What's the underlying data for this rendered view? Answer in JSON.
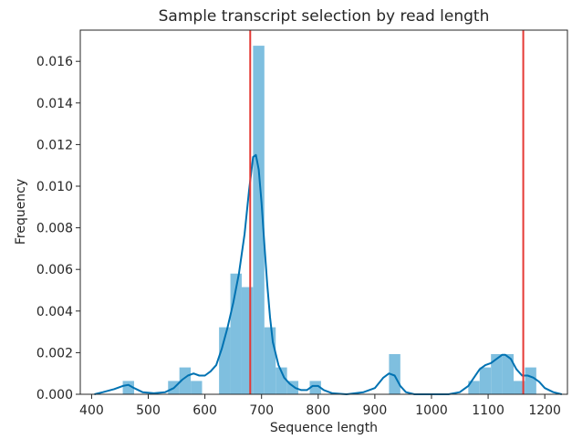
{
  "chart_data": {
    "type": "bar",
    "title": "Sample transcript selection by read length",
    "xlabel": "Sequence length",
    "ylabel": "Frequency",
    "xlim": [
      380,
      1240
    ],
    "ylim": [
      0,
      0.0175
    ],
    "xticks": [
      400,
      500,
      600,
      700,
      800,
      900,
      1000,
      1100,
      1200
    ],
    "xtick_labels": [
      "400",
      "500",
      "600",
      "700",
      "800",
      "900",
      "1000",
      "1100",
      "1200"
    ],
    "yticks": [
      0.0,
      0.002,
      0.004,
      0.006,
      0.008,
      0.01,
      0.012,
      0.014,
      0.016
    ],
    "ytick_labels": [
      "0.000",
      "0.002",
      "0.004",
      "0.006",
      "0.008",
      "0.010",
      "0.012",
      "0.014",
      "0.016"
    ],
    "grid": false,
    "histogram": {
      "bin_width": 20,
      "bars": [
        {
          "x0": 455,
          "height": 0.00064
        },
        {
          "x0": 535,
          "height": 0.00064
        },
        {
          "x0": 555,
          "height": 0.00129
        },
        {
          "x0": 575,
          "height": 0.00064
        },
        {
          "x0": 625,
          "height": 0.00322
        },
        {
          "x0": 645,
          "height": 0.0058
        },
        {
          "x0": 665,
          "height": 0.00515
        },
        {
          "x0": 685,
          "height": 0.01675
        },
        {
          "x0": 705,
          "height": 0.00322
        },
        {
          "x0": 725,
          "height": 0.00129
        },
        {
          "x0": 745,
          "height": 0.00064
        },
        {
          "x0": 785,
          "height": 0.00064
        },
        {
          "x0": 925,
          "height": 0.00193
        },
        {
          "x0": 1065,
          "height": 0.00064
        },
        {
          "x0": 1085,
          "height": 0.00129
        },
        {
          "x0": 1105,
          "height": 0.00193
        },
        {
          "x0": 1125,
          "height": 0.00193
        },
        {
          "x0": 1145,
          "height": 0.00064
        },
        {
          "x0": 1165,
          "height": 0.00129
        }
      ]
    },
    "density_curve": {
      "x": [
        405,
        420,
        440,
        455,
        465,
        475,
        490,
        510,
        530,
        545,
        560,
        570,
        580,
        590,
        600,
        610,
        620,
        630,
        640,
        650,
        660,
        670,
        678,
        685,
        690,
        695,
        700,
        705,
        710,
        715,
        720,
        730,
        740,
        750,
        760,
        770,
        780,
        790,
        800,
        810,
        825,
        850,
        880,
        900,
        915,
        925,
        935,
        945,
        955,
        970,
        1000,
        1030,
        1050,
        1065,
        1075,
        1085,
        1095,
        1105,
        1115,
        1125,
        1130,
        1140,
        1150,
        1160,
        1170,
        1180,
        1190,
        1200,
        1215,
        1230
      ],
      "y": [
        0.0,
        0.0001,
        0.00025,
        0.0004,
        0.00045,
        0.0003,
        0.0001,
        5e-05,
        0.0001,
        0.0003,
        0.0007,
        0.0009,
        0.001,
        0.0009,
        0.0009,
        0.0011,
        0.0014,
        0.0022,
        0.0032,
        0.0044,
        0.0058,
        0.0077,
        0.0098,
        0.0114,
        0.0115,
        0.0108,
        0.0092,
        0.0072,
        0.0053,
        0.0037,
        0.0025,
        0.0014,
        0.0008,
        0.0005,
        0.0003,
        0.0002,
        0.0002,
        0.0004,
        0.0004,
        0.0002,
        5e-05,
        0.0,
        0.0001,
        0.0003,
        0.0008,
        0.001,
        0.0009,
        0.0004,
        0.0001,
        0.0,
        0.0,
        0.0,
        0.0001,
        0.0004,
        0.0008,
        0.0012,
        0.0014,
        0.0015,
        0.0017,
        0.0019,
        0.0019,
        0.0017,
        0.0012,
        0.0009,
        0.0009,
        0.0008,
        0.0006,
        0.0003,
        0.0001,
        0.0
      ],
      "color": "#0072b2"
    },
    "vlines": [
      {
        "x": 680,
        "color": "#e53935"
      },
      {
        "x": 1162,
        "color": "#e53935"
      }
    ],
    "bar_color": "#7fbfdf"
  }
}
